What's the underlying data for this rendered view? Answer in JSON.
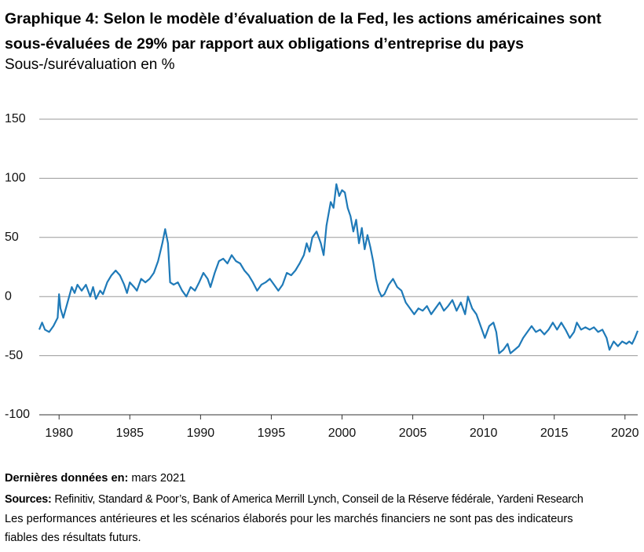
{
  "chart_data": {
    "type": "line",
    "title": "Graphique 4: Selon le modèle d’évaluation de la Fed, les actions américaines sont sous-évaluées de 29% par rapport aux obligations d’entreprise du pays",
    "subtitle": "Sous-/surévaluation en %",
    "x": [
      1978.6,
      1978.8,
      1979.0,
      1979.3,
      1979.6,
      1979.9,
      1980.0,
      1980.1,
      1980.3,
      1980.6,
      1980.9,
      1981.1,
      1981.3,
      1981.6,
      1981.9,
      1982.2,
      1982.4,
      1982.6,
      1982.9,
      1983.1,
      1983.4,
      1983.7,
      1984.0,
      1984.3,
      1984.6,
      1984.8,
      1985.0,
      1985.3,
      1985.5,
      1985.8,
      1986.1,
      1986.4,
      1986.7,
      1987.0,
      1987.3,
      1987.5,
      1987.7,
      1987.85,
      1988.1,
      1988.4,
      1988.7,
      1989.0,
      1989.3,
      1989.6,
      1989.9,
      1990.2,
      1990.5,
      1990.7,
      1991.0,
      1991.3,
      1991.6,
      1991.9,
      1992.2,
      1992.5,
      1992.8,
      1993.1,
      1993.4,
      1993.7,
      1994.0,
      1994.3,
      1994.6,
      1994.9,
      1995.2,
      1995.5,
      1995.8,
      1996.1,
      1996.4,
      1996.7,
      1997.0,
      1997.3,
      1997.5,
      1997.7,
      1997.9,
      1998.2,
      1998.5,
      1998.7,
      1998.9,
      1999.2,
      1999.4,
      1999.6,
      1999.8,
      2000.0,
      2000.2,
      2000.4,
      2000.6,
      2000.8,
      2001.0,
      2001.2,
      2001.4,
      2001.6,
      2001.8,
      2002.0,
      2002.2,
      2002.4,
      2002.6,
      2002.8,
      2003.0,
      2003.3,
      2003.6,
      2003.9,
      2004.2,
      2004.5,
      2004.8,
      2005.1,
      2005.4,
      2005.7,
      2006.0,
      2006.3,
      2006.6,
      2006.9,
      2007.2,
      2007.5,
      2007.8,
      2008.1,
      2008.4,
      2008.7,
      2008.9,
      2009.2,
      2009.5,
      2009.8,
      2010.1,
      2010.4,
      2010.7,
      2010.9,
      2011.1,
      2011.4,
      2011.7,
      2011.9,
      2012.2,
      2012.5,
      2012.8,
      2013.1,
      2013.4,
      2013.7,
      2014.0,
      2014.3,
      2014.6,
      2014.9,
      2015.2,
      2015.5,
      2015.8,
      2016.1,
      2016.4,
      2016.6,
      2016.9,
      2017.2,
      2017.5,
      2017.8,
      2018.1,
      2018.4,
      2018.7,
      2018.9,
      2019.2,
      2019.5,
      2019.8,
      2020.1,
      2020.3,
      2020.5,
      2020.7,
      2020.9
    ],
    "values": [
      -28,
      -22,
      -28,
      -30,
      -25,
      -18,
      2,
      -10,
      -18,
      -5,
      8,
      3,
      10,
      5,
      10,
      0,
      8,
      -2,
      5,
      2,
      12,
      18,
      22,
      18,
      10,
      3,
      12,
      8,
      5,
      15,
      12,
      15,
      20,
      30,
      45,
      57,
      45,
      12,
      10,
      12,
      5,
      0,
      8,
      5,
      12,
      20,
      15,
      8,
      20,
      30,
      32,
      28,
      35,
      30,
      28,
      22,
      18,
      12,
      5,
      10,
      12,
      15,
      10,
      5,
      10,
      20,
      18,
      22,
      28,
      35,
      45,
      38,
      50,
      55,
      45,
      35,
      60,
      80,
      75,
      95,
      85,
      90,
      88,
      75,
      68,
      55,
      65,
      45,
      58,
      40,
      52,
      42,
      30,
      15,
      5,
      0,
      2,
      10,
      15,
      8,
      5,
      -5,
      -10,
      -15,
      -10,
      -12,
      -8,
      -15,
      -10,
      -5,
      -12,
      -8,
      -3,
      -12,
      -5,
      -15,
      0,
      -10,
      -15,
      -25,
      -35,
      -25,
      -22,
      -30,
      -48,
      -45,
      -40,
      -48,
      -45,
      -42,
      -35,
      -30,
      -25,
      -30,
      -28,
      -32,
      -28,
      -22,
      -28,
      -22,
      -28,
      -35,
      -30,
      -22,
      -28,
      -26,
      -28,
      -26,
      -30,
      -28,
      -35,
      -45,
      -38,
      -42,
      -38,
      -40,
      -38,
      -40,
      -35,
      -29
    ],
    "color": "#1f7ab8",
    "xlim": [
      1978.6,
      2020.9
    ],
    "xticks": [
      1980,
      1985,
      1990,
      1995,
      2000,
      2005,
      2010,
      2015,
      2020
    ],
    "ylim": [
      -100,
      150
    ],
    "yticks": [
      -100,
      -50,
      0,
      50,
      100,
      150
    ],
    "grid": true,
    "notes": {
      "last_label": "Dernières données en:",
      "last_value": "mars 2021",
      "sources_label": "Sources:",
      "sources_value": "Refinitiv, Standard & Poor’s, Bank of America Merrill Lynch, Conseil de la Réserve fédérale, Yardeni Research",
      "disclaimer": "Les performances antérieures et les scénarios élaborés pour les marchés financiers ne sont pas des indicateurs fiables des résultats futurs."
    }
  }
}
